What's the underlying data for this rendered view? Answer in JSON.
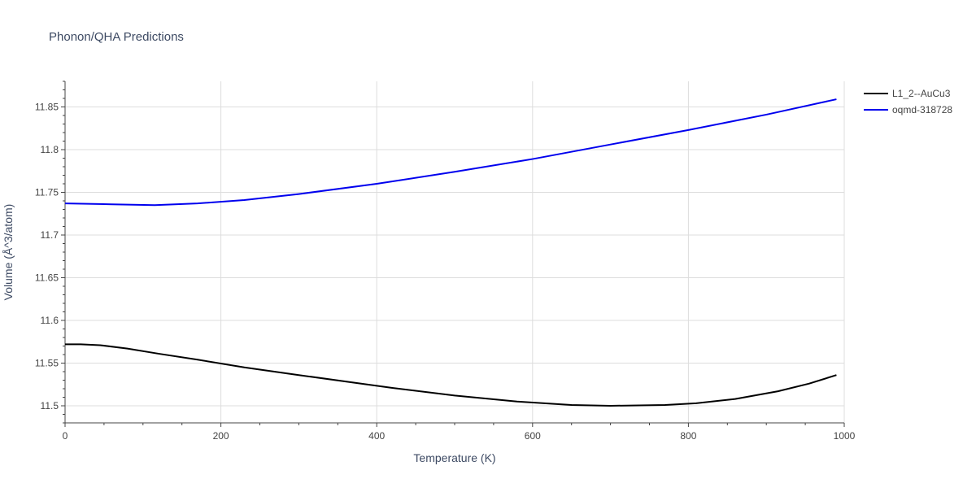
{
  "chart_data": {
    "type": "line",
    "title": "Phonon/QHA Predictions",
    "xlabel": "Temperature (K)",
    "ylabel": "Volume (Å^3/atom)",
    "xlim": [
      0,
      1000
    ],
    "ylim": [
      11.48,
      11.88
    ],
    "x_ticks": [
      0,
      200,
      400,
      600,
      800,
      1000
    ],
    "y_ticks": [
      11.5,
      11.55,
      11.6,
      11.65,
      11.7,
      11.75,
      11.8,
      11.85
    ],
    "x_tick_labels": [
      "0",
      "200",
      "400",
      "600",
      "800",
      "1000"
    ],
    "y_tick_labels": [
      "11.5",
      "11.55",
      "11.6",
      "11.65",
      "11.7",
      "11.75",
      "11.8",
      "11.85"
    ],
    "grid": true,
    "legend_position": "top-right",
    "series": [
      {
        "name": "L1_2--AuCu3",
        "color": "#000000",
        "x": [
          0,
          20,
          45,
          80,
          120,
          170,
          230,
          300,
          380,
          420,
          500,
          580,
          650,
          700,
          770,
          810,
          860,
          915,
          955,
          990
        ],
        "y": [
          11.572,
          11.572,
          11.571,
          11.567,
          11.561,
          11.554,
          11.545,
          11.536,
          11.526,
          11.521,
          11.512,
          11.505,
          11.501,
          11.5,
          11.501,
          11.503,
          11.508,
          11.517,
          11.526,
          11.536
        ]
      },
      {
        "name": "oqmd-318728",
        "color": "#0000ee",
        "x": [
          0,
          60,
          115,
          170,
          230,
          300,
          400,
          500,
          600,
          700,
          800,
          900,
          990
        ],
        "y": [
          11.737,
          11.736,
          11.735,
          11.737,
          11.741,
          11.748,
          11.76,
          11.774,
          11.789,
          11.806,
          11.823,
          11.841,
          11.859
        ]
      }
    ]
  }
}
